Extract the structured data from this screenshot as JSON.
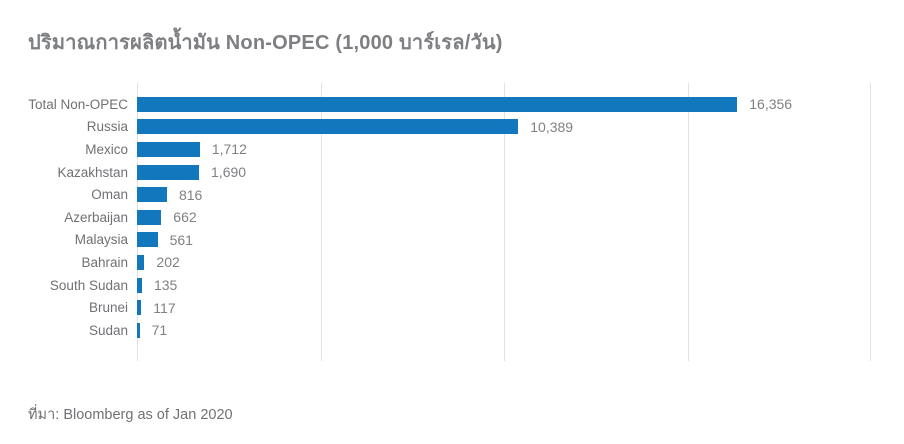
{
  "header": {
    "title": "ปริมาณการผลิตน้ำมัน Non-OPEC (1,000 บาร์เรล/วัน)"
  },
  "footer": {
    "source": "ที่มา: Bloomberg as of Jan 2020"
  },
  "chart_data": {
    "type": "bar",
    "orientation": "horizontal",
    "title": "ปริมาณการผลิตน้ำมัน Non-OPEC (1,000 บาร์เรล/วัน)",
    "categories": [
      "Total Non-OPEC",
      "Russia",
      "Mexico",
      "Kazakhstan",
      "Oman",
      "Azerbaijan",
      "Malaysia",
      "Bahrain",
      "South Sudan",
      "Brunei",
      "Sudan"
    ],
    "values": [
      16356,
      10389,
      1712,
      1690,
      816,
      662,
      561,
      202,
      135,
      117,
      71
    ],
    "value_labels": [
      "16,356",
      "10,389",
      "1,712",
      "1,690",
      "816",
      "662",
      "561",
      "202",
      "135",
      "117",
      "71"
    ],
    "xlabel": "",
    "ylabel": "",
    "xlim": [
      0,
      20000
    ],
    "gridlines": [
      0,
      5000,
      10000,
      15000,
      20000
    ],
    "grid": true,
    "legend": false,
    "colors": {
      "bar": "#1377BD",
      "gridline": "#E2E2E2",
      "title": "#7D7F82",
      "category_label": "#6F7174",
      "value_label": "#7F8184",
      "source": "#6F7174"
    }
  }
}
